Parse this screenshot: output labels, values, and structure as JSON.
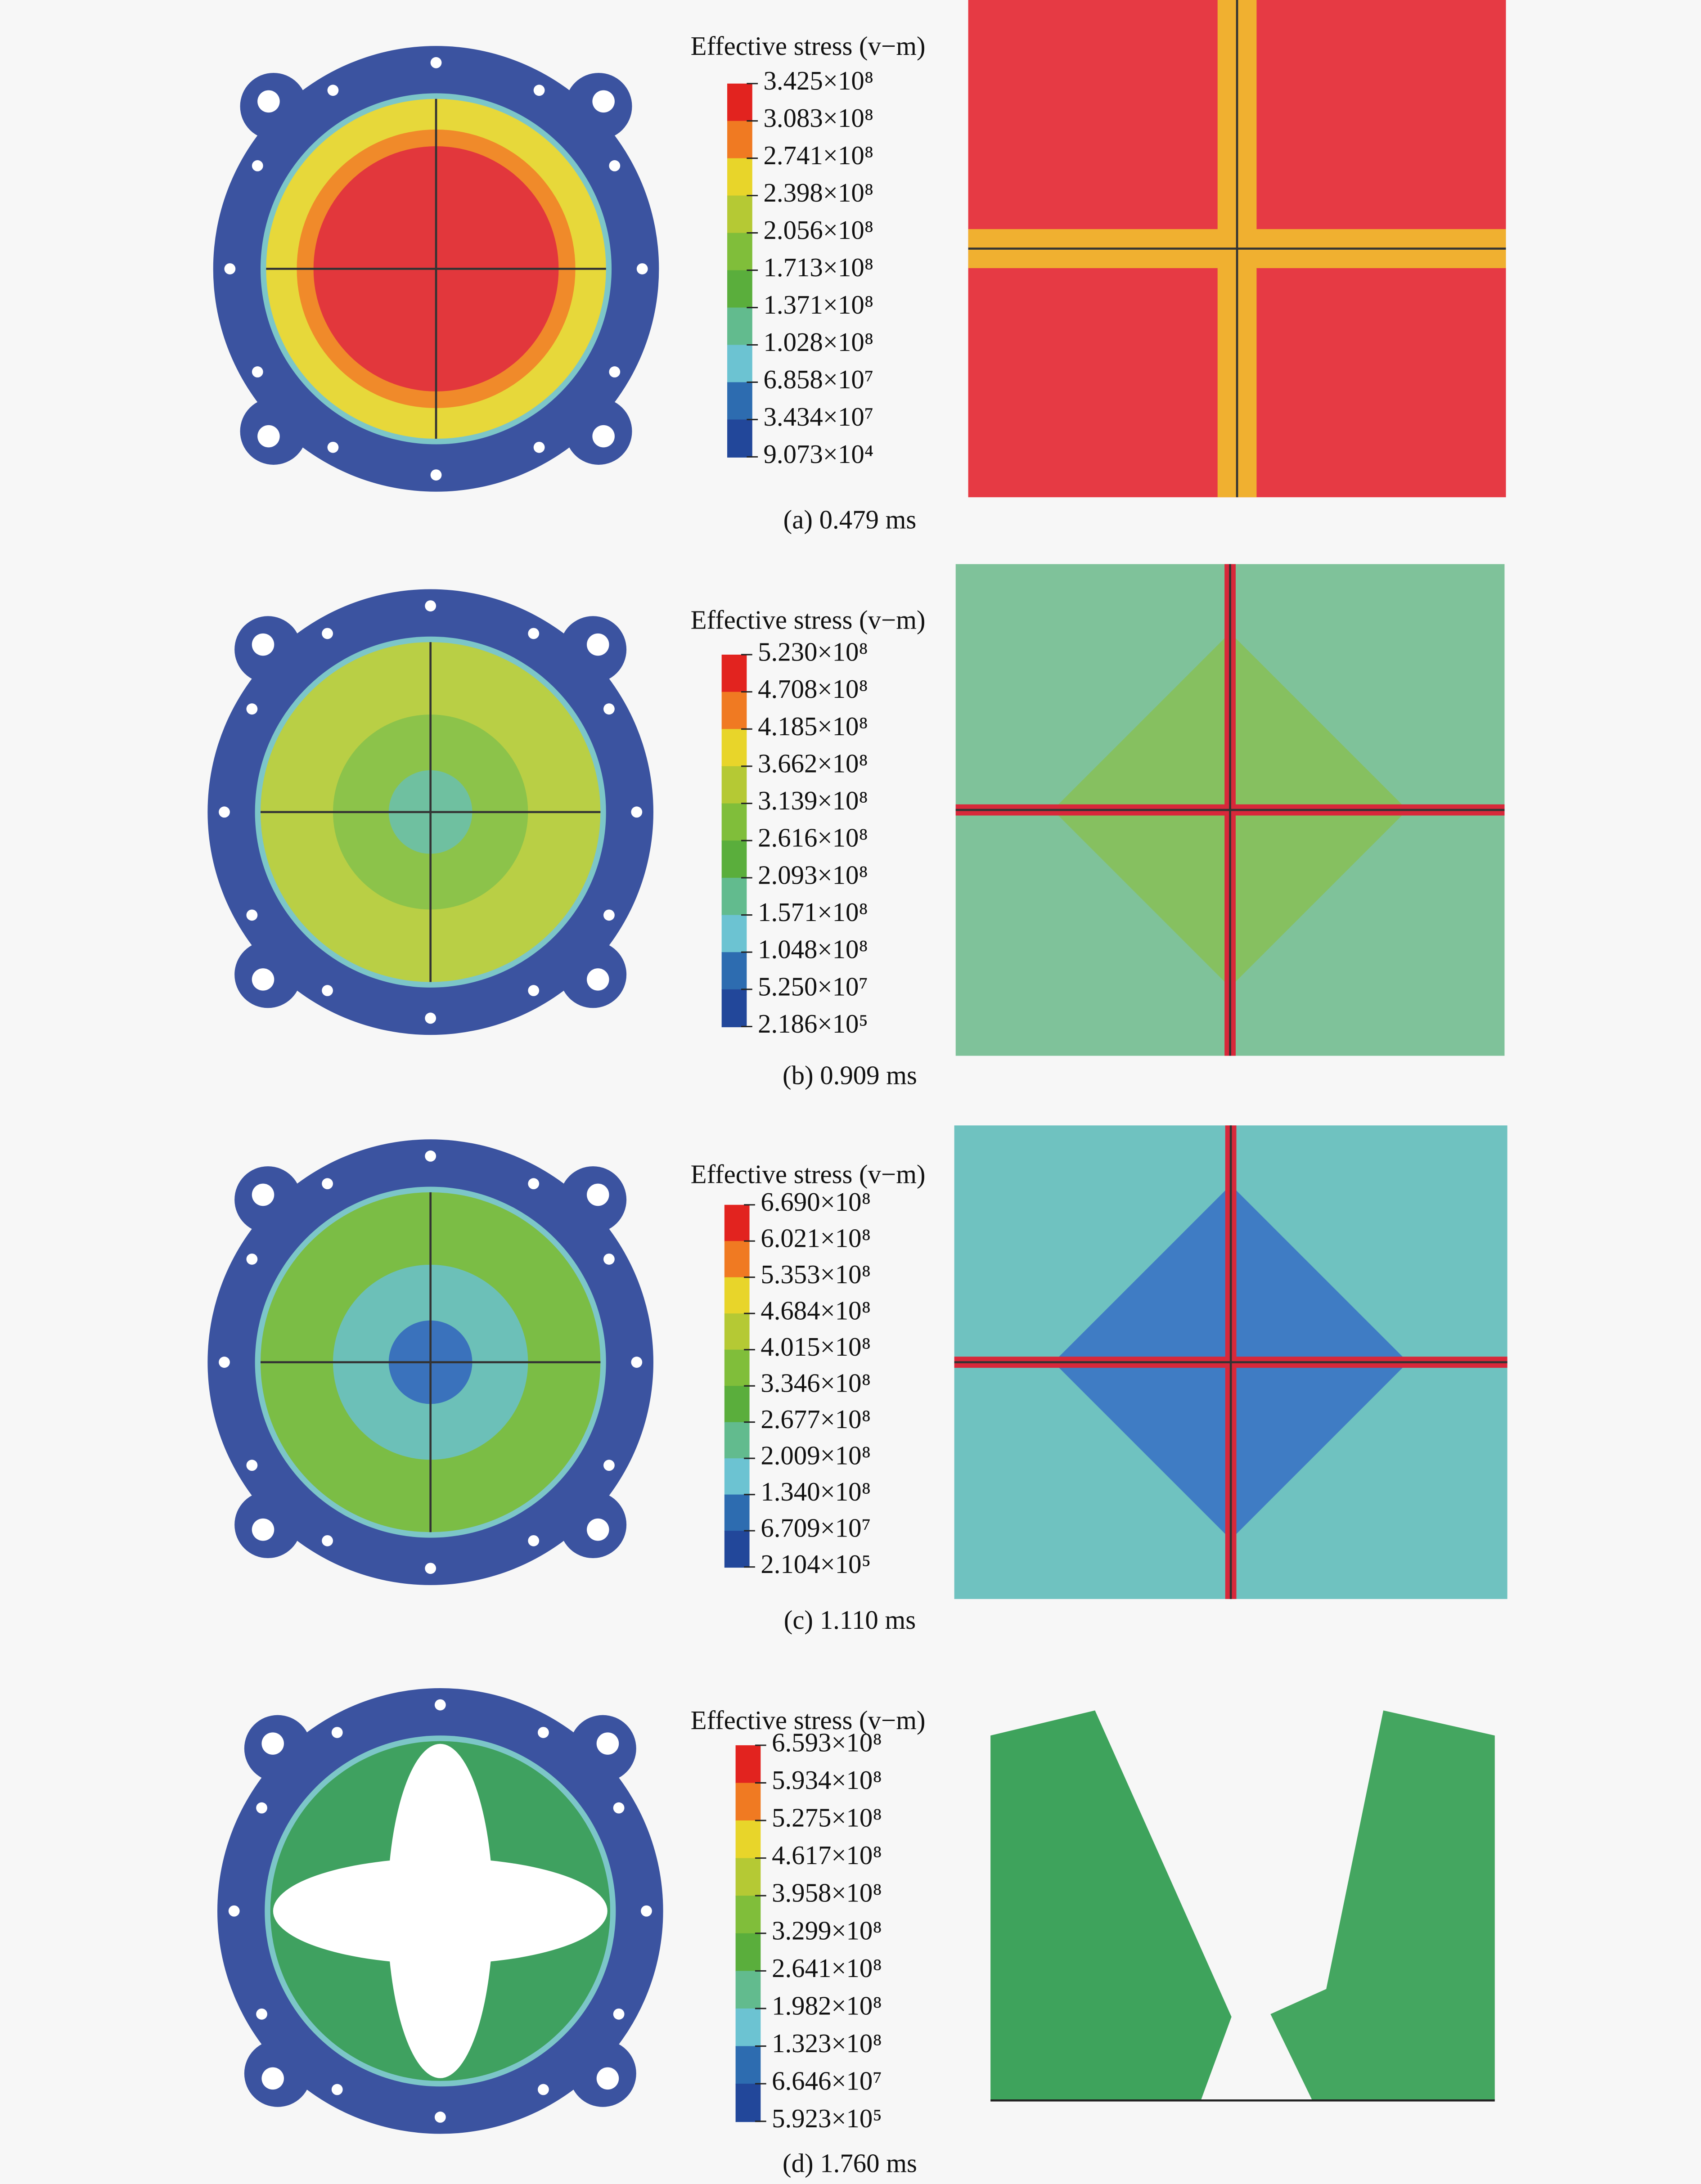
{
  "panels": [
    {
      "legend_title": "Effective stress (v−m)",
      "legend_labels": [
        "3.425×10⁸",
        "3.083×10⁸",
        "2.741×10⁸",
        "2.398×10⁸",
        "2.056×10⁸",
        "1.713×10⁸",
        "1.371×10⁸",
        "1.028×10⁸",
        "6.858×10⁷",
        "3.434×10⁷",
        "9.073×10⁴"
      ],
      "caption": "(a) 0.479 ms"
    },
    {
      "legend_title": "Effective stress (v−m)",
      "legend_labels": [
        "5.230×10⁸",
        "4.708×10⁸",
        "4.185×10⁸",
        "3.662×10⁸",
        "3.139×10⁸",
        "2.616×10⁸",
        "2.093×10⁸",
        "1.571×10⁸",
        "1.048×10⁸",
        "5.250×10⁷",
        "2.186×10⁵"
      ],
      "caption": "(b) 0.909 ms"
    },
    {
      "legend_title": "Effective stress (v−m)",
      "legend_labels": [
        "6.690×10⁸",
        "6.021×10⁸",
        "5.353×10⁸",
        "4.684×10⁸",
        "4.015×10⁸",
        "3.346×10⁸",
        "2.677×10⁸",
        "2.009×10⁸",
        "1.340×10⁸",
        "6.709×10⁷",
        "2.104×10⁵"
      ],
      "caption": "(c) 1.110 ms"
    },
    {
      "legend_title": "Effective stress (v−m)",
      "legend_labels": [
        "6.593×10⁸",
        "5.934×10⁸",
        "5.275×10⁸",
        "4.617×10⁸",
        "3.958×10⁸",
        "3.299×10⁸",
        "2.641×10⁸",
        "1.982×10⁸",
        "1.323×10⁸",
        "6.646×10⁷",
        "5.923×10⁵"
      ],
      "caption": "(d) 1.760 ms"
    }
  ]
}
